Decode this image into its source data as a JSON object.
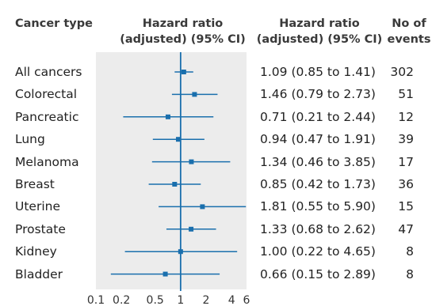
{
  "headers": {
    "cancer_type": "Cancer type",
    "plot_line1": "Hazard ratio",
    "plot_line2": "(adjusted) (95% CI)",
    "hr_line1": "Hazard ratio",
    "hr_line2": "(adjusted) (95% CI)",
    "events_line1": "No of",
    "events_line2": "events"
  },
  "chart_data": {
    "type": "forest",
    "xscale": "log",
    "xlim": [
      0.1,
      6
    ],
    "reference_line": 1,
    "x_ticks": [
      {
        "value": 0.1,
        "label": "0.1"
      },
      {
        "value": 0.2,
        "label": "0.2"
      },
      {
        "value": 0.5,
        "label": "0.5"
      },
      {
        "value": 1,
        "label": "1"
      },
      {
        "value": 2,
        "label": "2"
      },
      {
        "value": 4,
        "label": "4"
      },
      {
        "value": 6,
        "label": "6"
      }
    ],
    "rows": [
      {
        "label": "All cancers",
        "hr": 1.09,
        "lo": 0.85,
        "hi": 1.41,
        "text": "1.09 (0.85 to 1.41)",
        "events": "302"
      },
      {
        "label": "Colorectal",
        "hr": 1.46,
        "lo": 0.79,
        "hi": 2.73,
        "text": "1.46 (0.79 to 2.73)",
        "events": "51"
      },
      {
        "label": "Pancreatic",
        "hr": 0.71,
        "lo": 0.21,
        "hi": 2.44,
        "text": "0.71 (0.21 to 2.44)",
        "events": "12"
      },
      {
        "label": "Lung",
        "hr": 0.94,
        "lo": 0.47,
        "hi": 1.91,
        "text": "0.94 (0.47 to 1.91)",
        "events": "39"
      },
      {
        "label": "Melanoma",
        "hr": 1.34,
        "lo": 0.46,
        "hi": 3.85,
        "text": "1.34 (0.46 to 3.85)",
        "events": "17"
      },
      {
        "label": "Breast",
        "hr": 0.85,
        "lo": 0.42,
        "hi": 1.73,
        "text": "0.85 (0.42 to 1.73)",
        "events": "36"
      },
      {
        "label": "Uterine",
        "hr": 1.81,
        "lo": 0.55,
        "hi": 5.9,
        "text": "1.81 (0.55 to 5.90)",
        "events": "15"
      },
      {
        "label": "Prostate",
        "hr": 1.33,
        "lo": 0.68,
        "hi": 2.62,
        "text": "1.33 (0.68 to 2.62)",
        "events": "47"
      },
      {
        "label": "Kidney",
        "hr": 1.0,
        "lo": 0.22,
        "hi": 4.65,
        "text": "1.00 (0.22 to 4.65)",
        "events": "8"
      },
      {
        "label": "Bladder",
        "hr": 0.66,
        "lo": 0.15,
        "hi": 2.89,
        "text": "0.66 (0.15 to 2.89)",
        "events": "8"
      }
    ],
    "colors": {
      "marker": "#1a6fad",
      "ci_line": "#1a6fad",
      "reference_line": "#1a6fad",
      "panel": "#ececec"
    }
  }
}
